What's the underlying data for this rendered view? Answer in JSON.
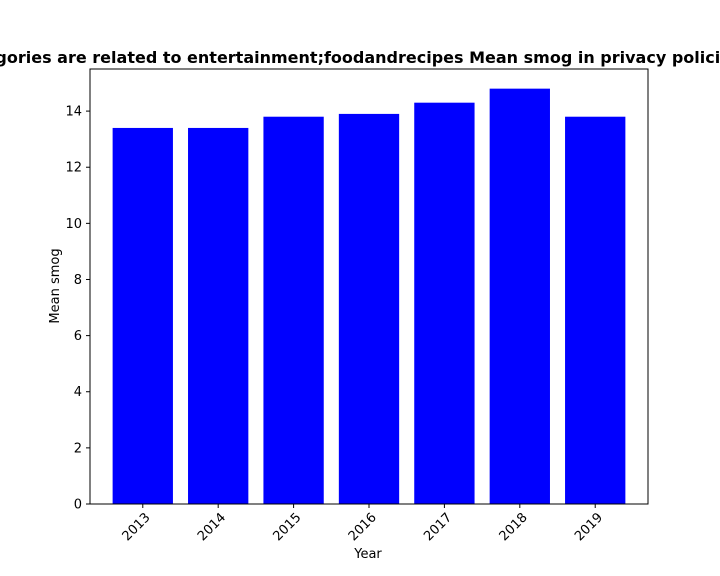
{
  "chart_data": {
    "type": "bar",
    "title": "Apps whose categories are related to entertainment;foodandrecipes Mean smog in privacy policies over the years",
    "xlabel": "Year",
    "ylabel": "Mean smog",
    "categories": [
      "2013",
      "2014",
      "2015",
      "2016",
      "2017",
      "2018",
      "2019"
    ],
    "values": [
      13.4,
      13.4,
      13.8,
      13.9,
      14.3,
      14.8,
      13.8
    ],
    "ylim": [
      0,
      15.5
    ],
    "yticks": [
      0,
      2,
      4,
      6,
      8,
      10,
      12,
      14
    ],
    "bar_color": "#0000ff",
    "grid": false,
    "xtick_rotation_deg": 45
  }
}
